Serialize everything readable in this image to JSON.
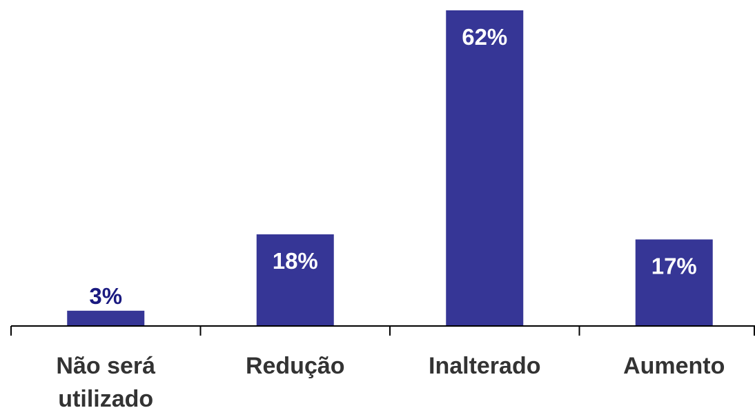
{
  "chart_data": {
    "type": "bar",
    "categories": [
      [
        "Não será",
        "utilizado"
      ],
      [
        "Redução"
      ],
      [
        "Inalterado"
      ],
      [
        "Aumento"
      ]
    ],
    "values": [
      3,
      18,
      62,
      17
    ],
    "value_labels": [
      "3%",
      "18%",
      "62%",
      "17%"
    ],
    "ylim": [
      0,
      62
    ],
    "grid": false,
    "legend": "none",
    "title": "",
    "xlabel": "",
    "ylabel": "",
    "colors": {
      "bar": "#363696",
      "label_inside": "#ffffff",
      "label_outside": "#1a1a80",
      "axis": "#000000",
      "category_text": "#333333"
    }
  }
}
